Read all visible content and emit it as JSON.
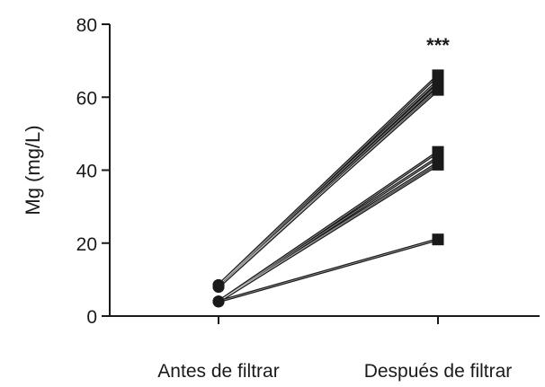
{
  "chart_data": {
    "type": "line",
    "title": "",
    "xlabel": "",
    "ylabel": "Mg (mg/L)",
    "categories": [
      "Antes de filtrar",
      "Después de filtrar"
    ],
    "ylim": [
      0,
      80
    ],
    "yticks": [
      0,
      20,
      40,
      60,
      80
    ],
    "grid": false,
    "legend": "none",
    "annotation": "***",
    "markers": {
      "before": "circle",
      "after": "square"
    },
    "series": [
      {
        "values": [
          8.5,
          66
        ]
      },
      {
        "values": [
          8.5,
          64.5
        ]
      },
      {
        "values": [
          8,
          63.5
        ]
      },
      {
        "values": [
          8,
          62.5
        ]
      },
      {
        "values": [
          8.5,
          62
        ]
      },
      {
        "values": [
          4,
          45
        ]
      },
      {
        "values": [
          4,
          43.5
        ]
      },
      {
        "values": [
          4,
          42
        ]
      },
      {
        "values": [
          4,
          41.5
        ]
      },
      {
        "values": [
          4,
          21
        ]
      }
    ],
    "colors": {
      "line": "#1a1a1a",
      "axis": "#1a1a1a",
      "line_highlight": "#ffffff"
    }
  }
}
